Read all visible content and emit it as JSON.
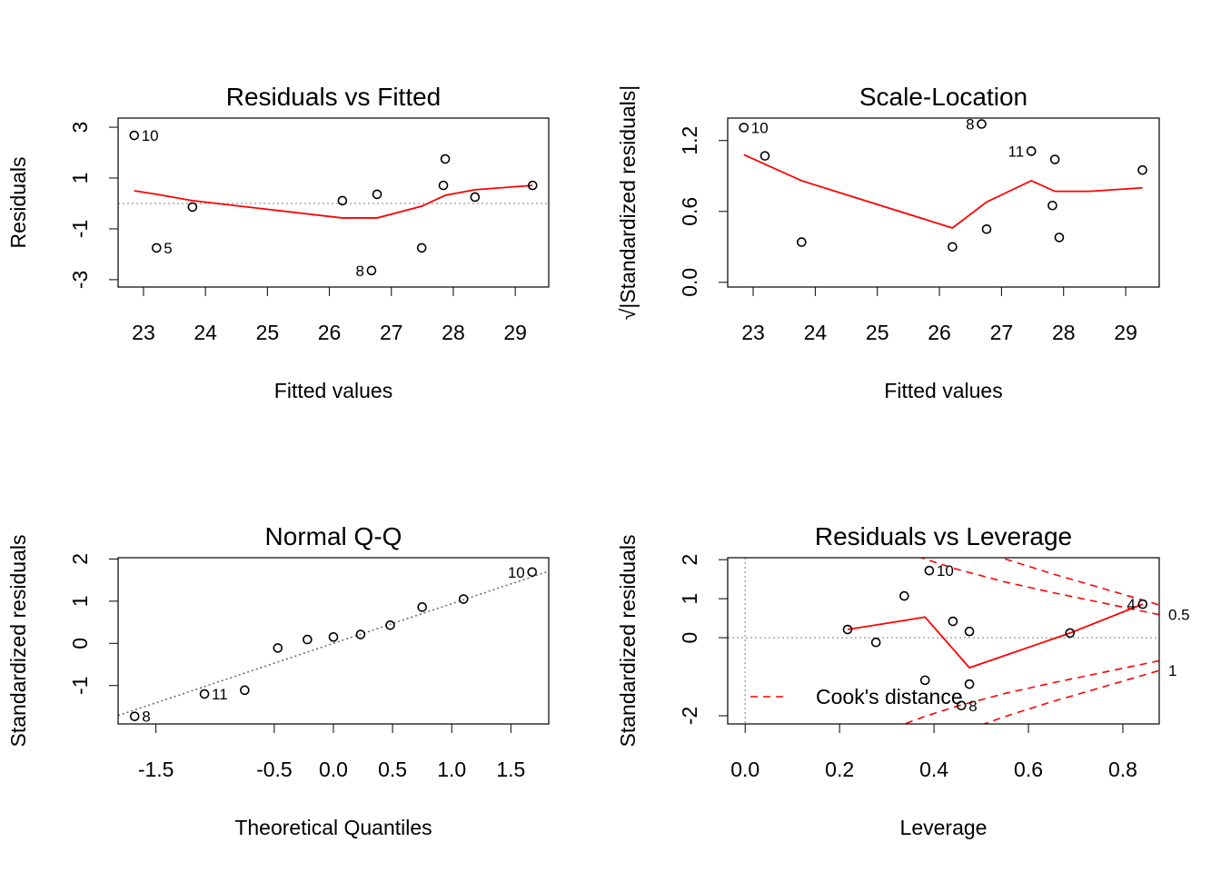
{
  "chart_data": [
    {
      "type": "scatter",
      "title": "Residuals vs Fitted",
      "x_label": "Fitted values",
      "y_label": "Residuals",
      "x": [
        22.85,
        23.21,
        23.79,
        26.21,
        26.77,
        26.68,
        27.49,
        27.84,
        27.87,
        28.35,
        29.28
      ],
      "y": [
        2.68,
        -1.75,
        -0.14,
        0.11,
        0.36,
        -2.64,
        -1.75,
        0.71,
        1.75,
        0.25,
        0.71
      ],
      "point_labels": [
        "10",
        "5",
        null,
        null,
        null,
        "8",
        null,
        null,
        null,
        null,
        null
      ],
      "point_color": "#000000",
      "smooth": {
        "x": [
          22.85,
          23.21,
          23.79,
          26.21,
          26.77,
          27.49,
          27.87,
          28.35,
          29.28
        ],
        "y": [
          0.5,
          0.36,
          0.11,
          -0.57,
          -0.57,
          -0.11,
          0.32,
          0.54,
          0.71
        ],
        "color": "#ff0000"
      },
      "hline": 0,
      "xlim": [
        22.59,
        29.54
      ],
      "ylim": [
        -3.29,
        3.36
      ],
      "xticks": [
        23,
        24,
        25,
        26,
        27,
        28,
        29
      ],
      "yticks": [
        3,
        1,
        -1,
        -3
      ]
    },
    {
      "type": "scatter",
      "title": "Scale-Location",
      "x_label": "Fitted values",
      "y_label": "√|Standardized residuals|",
      "x": [
        22.85,
        23.19,
        23.78,
        26.21,
        26.68,
        26.76,
        27.48,
        27.86,
        27.82,
        27.93,
        29.27
      ],
      "y": [
        1.31,
        1.07,
        0.34,
        0.3,
        1.34,
        0.45,
        1.11,
        1.04,
        0.65,
        0.38,
        0.95
      ],
      "point_labels": [
        "10",
        null,
        null,
        null,
        "8",
        null,
        "11",
        null,
        null,
        null,
        null
      ],
      "point_color": "#000000",
      "smooth": {
        "x": [
          22.85,
          23.78,
          26.21,
          26.76,
          27.48,
          27.86,
          28.42,
          29.27
        ],
        "y": [
          1.08,
          0.86,
          0.46,
          0.68,
          0.86,
          0.77,
          0.77,
          0.8
        ],
        "color": "#ff0000"
      },
      "xlim": [
        22.59,
        29.54
      ],
      "ylim": [
        -0.04,
        1.39
      ],
      "xticks": [
        23,
        24,
        25,
        26,
        27,
        28,
        29
      ],
      "yticks": [
        {
          "value": 0,
          "label": "0.0"
        },
        0.6,
        1.2
      ]
    },
    {
      "type": "scatter",
      "title": "Normal Q-Q",
      "x_label": "Theoretical Quantiles",
      "y_label": "Standardized residuals",
      "x": [
        -1.68,
        -1.09,
        -0.75,
        -0.47,
        -0.22,
        0.0,
        0.23,
        0.48,
        0.75,
        1.1,
        1.68
      ],
      "y": [
        -1.73,
        -1.2,
        -1.11,
        -0.11,
        0.09,
        0.15,
        0.21,
        0.43,
        0.86,
        1.05,
        1.69
      ],
      "point_labels": [
        "8",
        "11",
        null,
        null,
        null,
        null,
        null,
        null,
        null,
        null,
        "10"
      ],
      "point_color": "#000000",
      "ref_line": {
        "x": [
          -1.82,
          1.82
        ],
        "y": [
          -1.71,
          1.71
        ],
        "color": "#666666"
      },
      "xlim": [
        -1.82,
        1.82
      ],
      "ylim": [
        -1.91,
        2.03
      ],
      "xticks": [
        -1.5,
        -0.5,
        {
          "value": 0,
          "label": "0.0"
        },
        0.5,
        {
          "value": 1,
          "label": "1.0"
        },
        1.5
      ],
      "yticks": [
        2,
        1,
        0,
        -1
      ]
    },
    {
      "type": "scatter",
      "title": "Residuals vs Leverage",
      "x_label": "Leverage",
      "y_label": "Standardized residuals",
      "x": [
        0.217,
        0.277,
        0.337,
        0.381,
        0.39,
        0.44,
        0.475,
        0.458,
        0.475,
        0.688,
        0.842
      ],
      "y": [
        0.21,
        -0.12,
        1.07,
        -1.09,
        1.72,
        0.42,
        0.16,
        -1.74,
        -1.19,
        0.12,
        0.86
      ],
      "point_labels": [
        null,
        null,
        null,
        null,
        "10",
        null,
        null,
        "8",
        null,
        null,
        "4"
      ],
      "point_color": "#000000",
      "smooth": {
        "x": [
          0.217,
          0.337,
          0.381,
          0.475,
          0.688,
          0.842
        ],
        "y": [
          0.21,
          0.44,
          0.53,
          -0.77,
          0.12,
          0.86
        ],
        "color": "#ff0000"
      },
      "hline": 0,
      "vline": 0,
      "cooks_contours": [
        {
          "level": 0.5,
          "x": [
            0.34,
            0.38,
            0.45,
            0.55,
            0.65,
            0.75,
            0.877
          ],
          "upper": [
            2.2,
            2.02,
            1.75,
            1.43,
            1.16,
            0.91,
            0.59
          ],
          "lower": [
            -2.2,
            -2.02,
            -1.75,
            -1.43,
            -1.16,
            -0.91,
            -0.59
          ]
        },
        {
          "level": 1,
          "x": [
            0.5,
            0.55,
            0.65,
            0.75,
            0.877
          ],
          "upper": [
            2.24,
            2.02,
            1.64,
            1.29,
            0.84
          ],
          "lower": [
            -2.24,
            -2.02,
            -1.64,
            -1.29,
            -0.84
          ]
        }
      ],
      "contour_color": "#ff0000",
      "legend": {
        "label": "Cook's distance",
        "color": "#ff0000"
      },
      "xlim": [
        -0.037,
        0.877
      ],
      "ylim": [
        -2.21,
        2.05
      ],
      "xticks": [
        {
          "value": 0,
          "label": "0.0"
        },
        0.2,
        0.4,
        0.6,
        0.8
      ],
      "yticks": [
        2,
        1,
        0,
        -2
      ]
    }
  ]
}
